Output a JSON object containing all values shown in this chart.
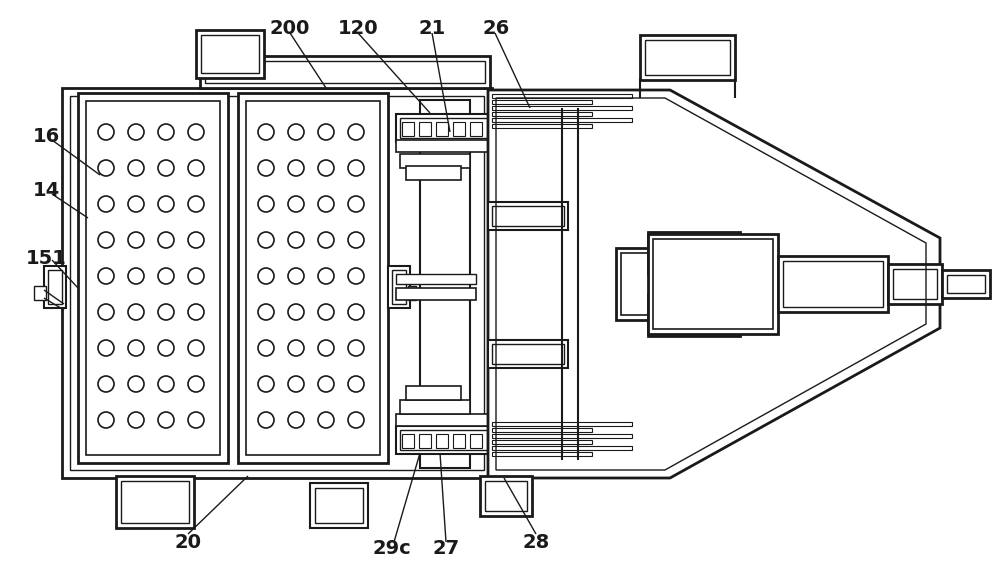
{
  "bg_color": "#ffffff",
  "line_color": "#1a1a1a",
  "lw": 1.5
}
